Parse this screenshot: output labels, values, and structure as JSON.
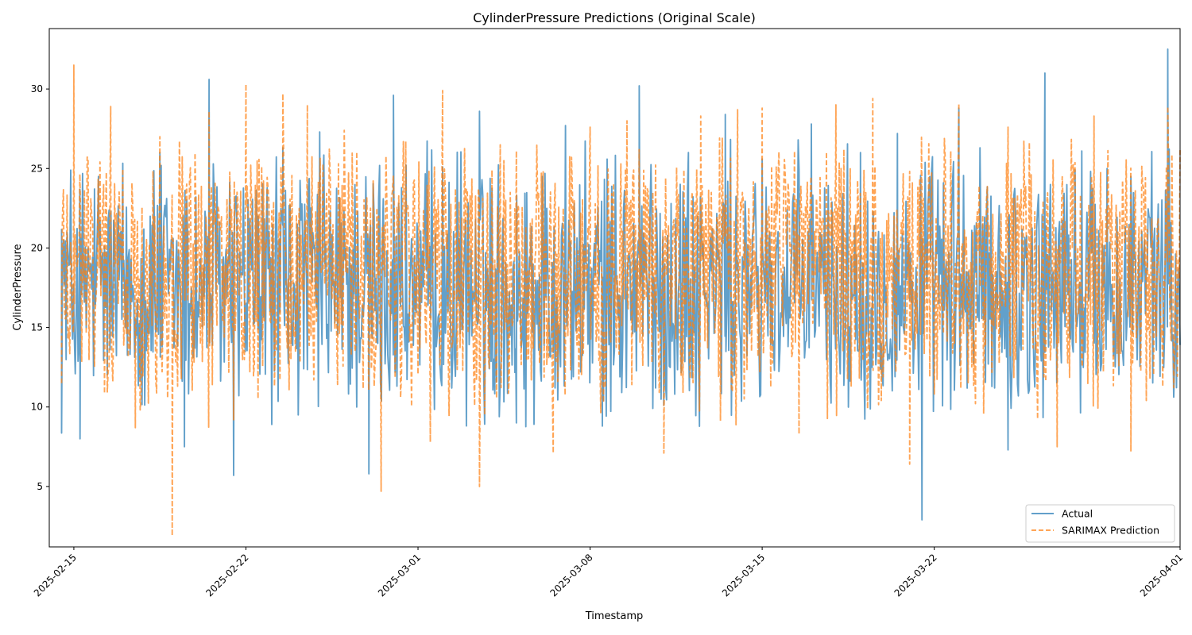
{
  "chart_data": {
    "type": "line",
    "title": "CylinderPressure Predictions (Original Scale)",
    "xlabel": "Timestamp",
    "ylabel": "CylinderPressure",
    "x_range": [
      "2025-02-14T00:00",
      "2025-04-01T00:00"
    ],
    "ylim": [
      1.2,
      33.8
    ],
    "x_ticks": [
      "2025-02-15",
      "2025-02-22",
      "2025-03-01",
      "2025-03-08",
      "2025-03-15",
      "2025-03-22",
      "2025-04-01"
    ],
    "y_ticks": [
      5,
      10,
      15,
      20,
      25,
      30
    ],
    "grid": false,
    "legend_position": "lower-right",
    "series": [
      {
        "name": "Actual",
        "color": "#1f77b4",
        "style": "solid",
        "alpha": 0.7,
        "x": [
          "2025-02-14T12:00",
          "2025-02-15T06:00",
          "2025-02-16T00:00",
          "2025-02-17T00:00",
          "2025-02-18T12:00",
          "2025-02-19T12:00",
          "2025-02-20T12:00",
          "2025-02-21T12:00",
          "2025-02-22T12:00",
          "2025-02-23T12:00",
          "2025-02-25T00:00",
          "2025-02-27T00:00",
          "2025-02-28T00:00",
          "2025-03-02T00:00",
          "2025-03-03T12:00",
          "2025-03-05T00:00",
          "2025-03-07T00:00",
          "2025-03-08T12:00",
          "2025-03-10T00:00",
          "2025-03-12T00:00",
          "2025-03-13T12:00",
          "2025-03-15T00:00",
          "2025-03-17T00:00",
          "2025-03-19T00:00",
          "2025-03-20T12:00",
          "2025-03-21T12:00",
          "2025-03-23T00:00",
          "2025-03-25T00:00",
          "2025-03-26T12:00",
          "2025-03-28T00:00",
          "2025-03-30T00:00",
          "2025-03-31T12:00",
          "2025-04-01T00:00"
        ],
        "y": [
          21.2,
          8.0,
          24.5,
          18.0,
          26.0,
          7.5,
          30.6,
          5.7,
          22.0,
          26.3,
          27.3,
          5.8,
          29.6,
          25.1,
          28.6,
          9.0,
          27.7,
          8.8,
          30.2,
          26.0,
          28.4,
          25.6,
          27.8,
          26.0,
          27.2,
          2.9,
          28.8,
          7.3,
          31.0,
          26.1,
          24.5,
          32.5,
          13.9
        ]
      },
      {
        "name": "SARIMAX Prediction",
        "color": "#ff7f0e",
        "style": "dashed",
        "alpha": 0.7,
        "x": [
          "2025-02-14T12:00",
          "2025-02-15T00:00",
          "2025-02-15T12:00",
          "2025-02-16T12:00",
          "2025-02-17T12:00",
          "2025-02-18T12:00",
          "2025-02-19T00:00",
          "2025-02-20T12:00",
          "2025-02-21T12:00",
          "2025-02-22T00:00",
          "2025-02-23T12:00",
          "2025-02-24T12:00",
          "2025-02-26T00:00",
          "2025-02-27T12:00",
          "2025-02-28T12:00",
          "2025-03-01T12:00",
          "2025-03-02T00:00",
          "2025-03-03T12:00",
          "2025-03-05T00:00",
          "2025-03-06T12:00",
          "2025-03-08T00:00",
          "2025-03-09T12:00",
          "2025-03-11T00:00",
          "2025-03-12T12:00",
          "2025-03-14T00:00",
          "2025-03-15T00:00",
          "2025-03-16T12:00",
          "2025-03-18T00:00",
          "2025-03-19T12:00",
          "2025-03-21T00:00",
          "2025-03-23T00:00",
          "2025-03-25T00:00",
          "2025-03-27T00:00",
          "2025-03-28T12:00",
          "2025-03-30T00:00",
          "2025-03-31T12:00",
          "2025-04-01T00:00"
        ],
        "y": [
          11.5,
          31.5,
          20.0,
          28.9,
          8.7,
          27.0,
          1.9,
          28.6,
          9.2,
          30.3,
          29.7,
          29.0,
          27.4,
          4.7,
          26.7,
          7.8,
          29.9,
          5.0,
          26.1,
          7.1,
          27.6,
          28.0,
          7.1,
          28.3,
          28.7,
          28.8,
          8.3,
          29.0,
          29.4,
          6.4,
          29.1,
          27.6,
          7.5,
          28.3,
          7.2,
          28.9,
          26.2
        ]
      }
    ]
  }
}
